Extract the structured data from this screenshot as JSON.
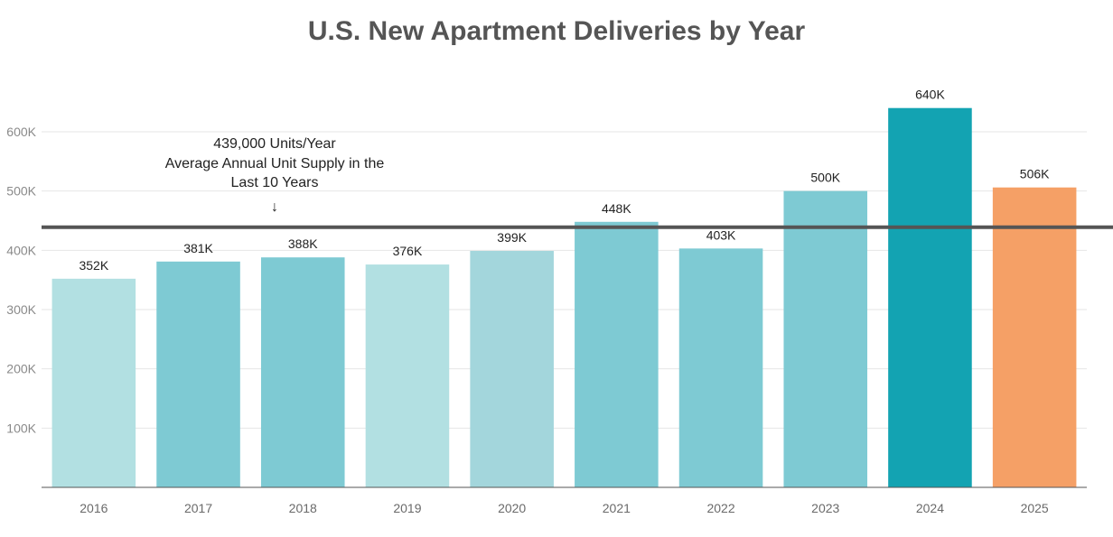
{
  "chart_data": {
    "type": "bar",
    "title": "U.S. New Apartment Deliveries by Year",
    "xlabel": "",
    "ylabel": "",
    "categories": [
      "2016",
      "2017",
      "2018",
      "2019",
      "2020",
      "2021",
      "2022",
      "2023",
      "2024",
      "2025"
    ],
    "values": [
      352000,
      381000,
      388000,
      376000,
      399000,
      448000,
      403000,
      500000,
      640000,
      506000
    ],
    "data_labels": [
      "352K",
      "381K",
      "388K",
      "376K",
      "399K",
      "448K",
      "403K",
      "500K",
      "640K",
      "506K"
    ],
    "colors": [
      "#b2e0e2",
      "#7ecad3",
      "#7ecad3",
      "#b2e0e2",
      "#a3d6dc",
      "#7ecad3",
      "#7ecad3",
      "#7ecad3",
      "#13a3b2",
      "#f5a066"
    ],
    "ylim": [
      0,
      670000
    ],
    "yticks": [
      100000,
      200000,
      300000,
      400000,
      500000,
      600000
    ],
    "ytick_labels": [
      "100K",
      "200K",
      "300K",
      "400K",
      "500K",
      "600K"
    ],
    "grid": true,
    "reference_line": {
      "value": 439000,
      "color": "#555555",
      "annotation": [
        "439,000 Units/Year",
        "Average Annual Unit Supply in the",
        "Last 10 Years"
      ],
      "arrow": "↓"
    }
  }
}
